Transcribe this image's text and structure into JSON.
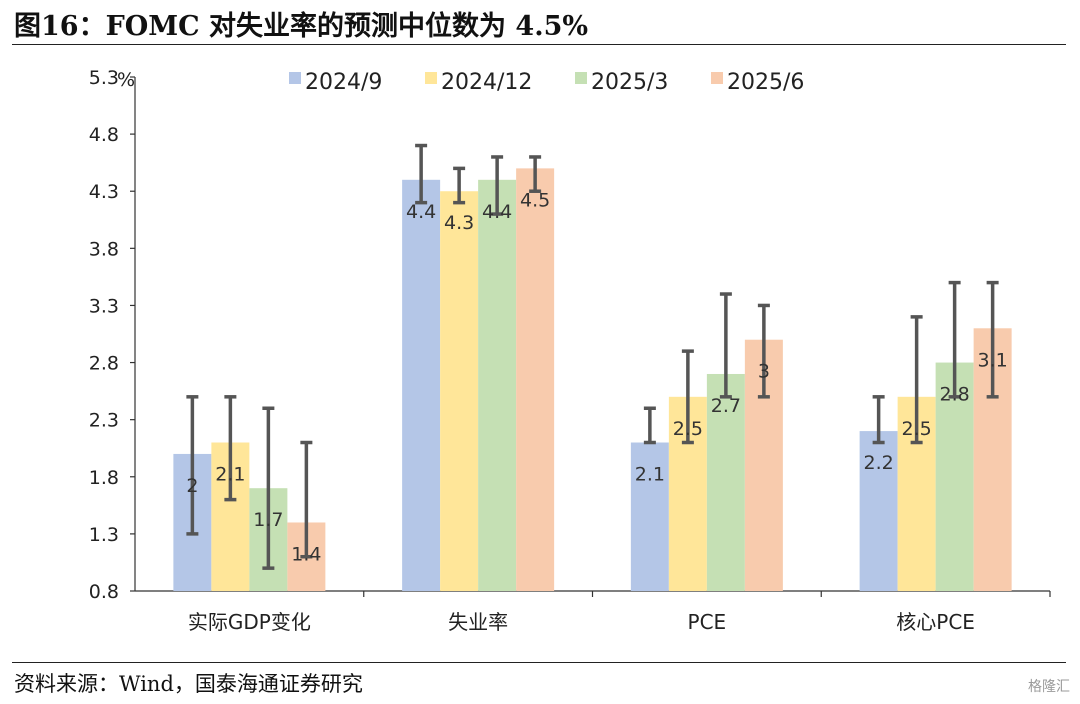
{
  "title": "图16：FOMC 对失业率的预测中位数为 4.5%",
  "source": "资料来源：Wind，国泰海通证券研究",
  "watermark": "格隆汇",
  "chart_data": {
    "type": "bar",
    "title": "",
    "ylabel": "%",
    "ylim": [
      0.8,
      5.3
    ],
    "yticks": [
      "0.8",
      "1.3",
      "1.8",
      "2.3",
      "2.8",
      "3.3",
      "3.8",
      "4.3",
      "4.8",
      "5.3"
    ],
    "legend_position": "top",
    "grid": false,
    "categories": [
      "实际GDP变化",
      "失业率",
      "PCE",
      "核心PCE"
    ],
    "series": [
      {
        "name": "2024/9",
        "color": "#b4c6e7",
        "values": [
          2,
          4.4,
          2.1,
          2.2
        ],
        "labels": [
          "2",
          "4.4",
          "2.1",
          "2.2"
        ],
        "err_low": [
          1.3,
          4.2,
          2.1,
          2.1
        ],
        "err_high": [
          2.5,
          4.7,
          2.4,
          2.5
        ]
      },
      {
        "name": "2024/12",
        "color": "#ffe699",
        "values": [
          2.1,
          4.3,
          2.5,
          2.5
        ],
        "labels": [
          "2.1",
          "4.3",
          "2.5",
          "2.5"
        ],
        "err_low": [
          1.6,
          4.2,
          2.1,
          2.1
        ],
        "err_high": [
          2.5,
          4.5,
          2.9,
          3.2
        ]
      },
      {
        "name": "2025/3",
        "color": "#c5e0b4",
        "values": [
          1.7,
          4.4,
          2.7,
          2.8
        ],
        "labels": [
          "1.7",
          "4.4",
          "2.7",
          "2.8"
        ],
        "err_low": [
          1.0,
          4.1,
          2.5,
          2.5
        ],
        "err_high": [
          2.4,
          4.6,
          3.4,
          3.5
        ]
      },
      {
        "name": "2025/6",
        "color": "#f8cbad",
        "values": [
          1.4,
          4.5,
          3,
          3.1
        ],
        "labels": [
          "1.4",
          "4.5",
          "3",
          "3.1"
        ],
        "err_low": [
          1.1,
          4.3,
          2.5,
          2.5
        ],
        "err_high": [
          2.1,
          4.6,
          3.3,
          3.5
        ]
      }
    ]
  }
}
